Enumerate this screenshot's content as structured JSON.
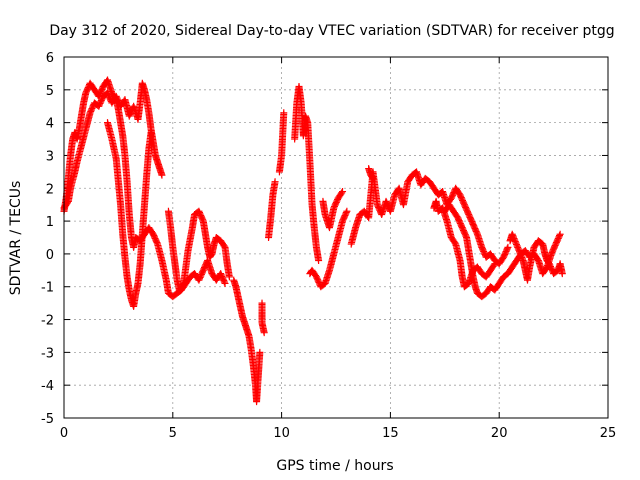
{
  "chart_data": {
    "type": "scatter",
    "title": "Day 312 of 2020, Sidereal Day-to-day VTEC variation (SDTVAR) for receiver ptgg",
    "xlabel": "GPS time / hours",
    "ylabel": "SDTVAR / TECUs",
    "xlim": [
      0,
      25
    ],
    "ylim": [
      -5,
      6
    ],
    "xticks": [
      0,
      5,
      10,
      15,
      20,
      25
    ],
    "yticks": [
      -5,
      -4,
      -3,
      -2,
      -1,
      0,
      1,
      2,
      3,
      4,
      5,
      6
    ],
    "grid": true,
    "marker": "+",
    "series": [
      {
        "name": "SDTVAR",
        "color": "#ff0000",
        "segments": [
          [
            [
              0.0,
              1.3
            ],
            [
              0.1,
              1.7
            ],
            [
              0.2,
              2.3
            ],
            [
              0.3,
              3.0
            ],
            [
              0.4,
              3.5
            ],
            [
              0.5,
              3.7
            ],
            [
              0.6,
              3.5
            ],
            [
              0.7,
              3.8
            ],
            [
              0.8,
              4.2
            ],
            [
              0.9,
              4.6
            ],
            [
              1.0,
              4.9
            ],
            [
              1.2,
              5.2
            ],
            [
              1.4,
              5.0
            ],
            [
              1.6,
              4.8
            ],
            [
              1.8,
              5.1
            ],
            [
              2.0,
              5.3
            ],
            [
              2.2,
              4.9
            ],
            [
              2.4,
              4.7
            ],
            [
              2.5,
              4.4
            ],
            [
              2.6,
              4.0
            ],
            [
              2.7,
              3.6
            ],
            [
              2.8,
              3.0
            ],
            [
              2.9,
              2.2
            ],
            [
              3.0,
              1.2
            ],
            [
              3.1,
              0.5
            ],
            [
              3.2,
              0.2
            ],
            [
              3.3,
              0.5
            ],
            [
              3.5,
              0.4
            ],
            [
              3.7,
              0.6
            ],
            [
              3.9,
              0.8
            ],
            [
              4.1,
              0.6
            ],
            [
              4.3,
              0.3
            ],
            [
              4.5,
              -0.2
            ],
            [
              4.7,
              -0.8
            ],
            [
              4.8,
              -1.2
            ],
            [
              5.0,
              -1.3
            ],
            [
              5.2,
              -1.2
            ],
            [
              5.4,
              -1.1
            ],
            [
              5.6,
              -0.9
            ],
            [
              5.8,
              -0.7
            ],
            [
              6.0,
              -0.6
            ],
            [
              6.2,
              -0.8
            ],
            [
              6.4,
              -0.5
            ],
            [
              6.6,
              -0.2
            ],
            [
              6.8,
              -0.6
            ],
            [
              7.0,
              -0.8
            ],
            [
              7.2,
              -0.6
            ],
            [
              7.4,
              -0.9
            ]
          ],
          [
            [
              0.0,
              1.4
            ],
            [
              0.2,
              1.6
            ],
            [
              0.3,
              2.0
            ],
            [
              0.5,
              2.5
            ],
            [
              0.6,
              2.8
            ],
            [
              0.8,
              3.3
            ],
            [
              1.0,
              3.8
            ],
            [
              1.2,
              4.3
            ],
            [
              1.4,
              4.6
            ],
            [
              1.6,
              4.5
            ],
            [
              1.8,
              4.8
            ],
            [
              2.0,
              4.9
            ],
            [
              2.2,
              4.6
            ],
            [
              2.4,
              4.8
            ],
            [
              2.6,
              4.5
            ],
            [
              2.8,
              4.7
            ],
            [
              3.0,
              4.2
            ],
            [
              3.2,
              4.5
            ],
            [
              3.4,
              4.1
            ],
            [
              3.5,
              4.6
            ],
            [
              3.6,
              5.2
            ],
            [
              3.7,
              5.0
            ],
            [
              3.8,
              4.7
            ],
            [
              3.9,
              4.3
            ],
            [
              4.0,
              3.8
            ],
            [
              4.1,
              3.4
            ],
            [
              4.2,
              3.0
            ],
            [
              4.3,
              2.8
            ],
            [
              4.4,
              2.6
            ],
            [
              4.5,
              2.4
            ]
          ],
          [
            [
              2.0,
              4.0
            ],
            [
              2.2,
              3.5
            ],
            [
              2.4,
              2.9
            ],
            [
              2.5,
              2.2
            ],
            [
              2.6,
              1.5
            ],
            [
              2.7,
              0.6
            ],
            [
              2.8,
              -0.1
            ],
            [
              2.9,
              -0.7
            ],
            [
              3.0,
              -1.1
            ],
            [
              3.1,
              -1.4
            ],
            [
              3.2,
              -1.6
            ],
            [
              3.3,
              -1.2
            ],
            [
              3.4,
              -0.9
            ],
            [
              3.5,
              -0.3
            ],
            [
              3.6,
              0.6
            ],
            [
              3.7,
              1.5
            ],
            [
              3.8,
              2.4
            ],
            [
              3.9,
              3.2
            ],
            [
              4.0,
              3.7
            ]
          ],
          [
            [
              4.8,
              1.3
            ],
            [
              4.9,
              0.8
            ],
            [
              5.0,
              0.2
            ],
            [
              5.1,
              -0.3
            ],
            [
              5.2,
              -0.8
            ],
            [
              5.3,
              -1.1
            ],
            [
              5.5,
              -0.9
            ],
            [
              5.7,
              0.1
            ],
            [
              5.9,
              0.8
            ],
            [
              6.0,
              1.2
            ],
            [
              6.2,
              1.3
            ],
            [
              6.4,
              1.0
            ],
            [
              6.5,
              0.6
            ],
            [
              6.6,
              0.2
            ],
            [
              6.7,
              -0.1
            ],
            [
              6.8,
              0.0
            ],
            [
              6.9,
              0.3
            ],
            [
              7.0,
              0.5
            ],
            [
              7.2,
              0.4
            ],
            [
              7.4,
              0.2
            ],
            [
              7.5,
              -0.3
            ],
            [
              7.6,
              -0.7
            ]
          ],
          [
            [
              7.8,
              -0.8
            ],
            [
              7.9,
              -1.0
            ],
            [
              8.0,
              -1.3
            ],
            [
              8.1,
              -1.6
            ],
            [
              8.2,
              -1.9
            ],
            [
              8.3,
              -2.1
            ],
            [
              8.4,
              -2.3
            ],
            [
              8.5,
              -2.5
            ],
            [
              8.6,
              -2.9
            ],
            [
              8.7,
              -3.4
            ],
            [
              8.8,
              -4.0
            ],
            [
              8.85,
              -4.5
            ],
            [
              8.9,
              -4.0
            ],
            [
              8.95,
              -3.5
            ],
            [
              9.0,
              -3.0
            ]
          ],
          [
            [
              9.1,
              -1.5
            ],
            [
              9.1,
              -2.1
            ],
            [
              9.2,
              -2.4
            ]
          ],
          [
            [
              9.4,
              0.5
            ],
            [
              9.5,
              1.1
            ],
            [
              9.6,
              1.8
            ],
            [
              9.7,
              2.2
            ]
          ],
          [
            [
              9.9,
              2.5
            ],
            [
              10.0,
              3.0
            ],
            [
              10.1,
              4.3
            ]
          ],
          [
            [
              10.6,
              3.5
            ],
            [
              10.7,
              4.6
            ],
            [
              10.8,
              5.1
            ],
            [
              10.9,
              4.6
            ],
            [
              11.0,
              3.6
            ],
            [
              11.1,
              4.2
            ],
            [
              11.2,
              4.0
            ],
            [
              11.3,
              2.8
            ],
            [
              11.4,
              1.5
            ],
            [
              11.5,
              0.8
            ],
            [
              11.6,
              0.2
            ],
            [
              11.7,
              -0.2
            ]
          ],
          [
            [
              11.3,
              -0.6
            ],
            [
              11.4,
              -0.5
            ],
            [
              11.6,
              -0.7
            ],
            [
              11.8,
              -1.0
            ],
            [
              12.0,
              -0.9
            ],
            [
              12.2,
              -0.5
            ],
            [
              12.4,
              0.0
            ],
            [
              12.6,
              0.5
            ],
            [
              12.8,
              1.0
            ],
            [
              13.0,
              1.3
            ]
          ],
          [
            [
              11.9,
              1.6
            ],
            [
              12.0,
              1.2
            ],
            [
              12.2,
              0.8
            ],
            [
              12.4,
              1.4
            ],
            [
              12.6,
              1.7
            ],
            [
              12.8,
              1.9
            ]
          ],
          [
            [
              13.2,
              0.3
            ],
            [
              13.4,
              0.8
            ],
            [
              13.6,
              1.2
            ],
            [
              13.8,
              1.3
            ],
            [
              14.0,
              1.1
            ],
            [
              14.2,
              2.5
            ],
            [
              14.4,
              1.5
            ],
            [
              14.6,
              1.2
            ],
            [
              14.8,
              1.6
            ],
            [
              15.0,
              1.3
            ],
            [
              15.2,
              1.8
            ],
            [
              15.4,
              2.0
            ],
            [
              15.6,
              1.5
            ],
            [
              15.8,
              2.2
            ],
            [
              16.0,
              2.4
            ],
            [
              16.2,
              2.5
            ],
            [
              16.4,
              2.1
            ],
            [
              16.6,
              2.3
            ],
            [
              16.8,
              2.2
            ],
            [
              17.0,
              2.0
            ],
            [
              17.2,
              1.8
            ],
            [
              17.4,
              1.9
            ],
            [
              17.6,
              1.5
            ],
            [
              17.8,
              1.7
            ],
            [
              18.0,
              2.0
            ],
            [
              18.2,
              1.8
            ],
            [
              18.4,
              1.5
            ],
            [
              18.6,
              1.2
            ],
            [
              18.8,
              0.9
            ],
            [
              19.0,
              0.6
            ],
            [
              19.2,
              0.2
            ],
            [
              19.4,
              -0.1
            ],
            [
              19.6,
              0.0
            ],
            [
              19.8,
              -0.2
            ],
            [
              20.0,
              -0.3
            ],
            [
              20.2,
              -0.1
            ],
            [
              20.4,
              0.2
            ]
          ],
          [
            [
              17.5,
              1.3
            ],
            [
              17.7,
              1.5
            ],
            [
              17.9,
              1.3
            ],
            [
              18.1,
              1.1
            ],
            [
              18.3,
              0.8
            ],
            [
              18.5,
              0.5
            ],
            [
              18.6,
              0.1
            ],
            [
              18.7,
              -0.3
            ],
            [
              18.8,
              -0.7
            ],
            [
              18.9,
              -1.0
            ],
            [
              19.0,
              -1.2
            ],
            [
              19.2,
              -1.3
            ],
            [
              19.4,
              -1.2
            ],
            [
              19.6,
              -1.0
            ],
            [
              19.8,
              -1.1
            ],
            [
              20.0,
              -0.9
            ],
            [
              20.2,
              -0.7
            ],
            [
              20.4,
              -0.6
            ],
            [
              20.6,
              -0.4
            ],
            [
              20.8,
              -0.2
            ],
            [
              21.0,
              0.0
            ],
            [
              21.2,
              0.1
            ],
            [
              21.4,
              -0.1
            ],
            [
              21.6,
              0.0
            ],
            [
              21.8,
              -0.2
            ],
            [
              22.0,
              -0.6
            ],
            [
              22.2,
              -0.4
            ],
            [
              22.4,
              0.0
            ],
            [
              22.6,
              0.3
            ],
            [
              22.8,
              0.6
            ]
          ],
          [
            [
              17.0,
              1.4
            ],
            [
              17.1,
              1.6
            ],
            [
              17.2,
              1.3
            ],
            [
              17.4,
              1.4
            ],
            [
              17.6,
              1.0
            ],
            [
              17.8,
              0.5
            ],
            [
              18.0,
              0.3
            ],
            [
              18.2,
              -0.2
            ],
            [
              18.3,
              -0.7
            ],
            [
              18.4,
              -1.0
            ],
            [
              18.6,
              -0.9
            ],
            [
              18.8,
              -0.5
            ],
            [
              19.0,
              -0.4
            ],
            [
              19.2,
              -0.6
            ],
            [
              19.4,
              -0.7
            ],
            [
              19.6,
              -0.5
            ],
            [
              19.8,
              -0.3
            ]
          ],
          [
            [
              20.5,
              0.4
            ],
            [
              20.6,
              0.6
            ],
            [
              21.1,
              -0.2
            ],
            [
              21.2,
              -0.5
            ],
            [
              21.3,
              -0.8
            ],
            [
              21.4,
              -0.4
            ],
            [
              21.6,
              0.2
            ],
            [
              21.8,
              0.4
            ],
            [
              22.0,
              0.3
            ],
            [
              22.1,
              0.0
            ],
            [
              22.2,
              -0.2
            ],
            [
              22.3,
              -0.3
            ],
            [
              22.5,
              -0.6
            ],
            [
              22.7,
              -0.5
            ],
            [
              22.8,
              -0.3
            ],
            [
              22.9,
              -0.6
            ]
          ],
          [
            [
              14.0,
              2.6
            ],
            [
              14.1,
              2.4
            ],
            [
              14.2,
              2.3
            ]
          ]
        ]
      }
    ]
  }
}
